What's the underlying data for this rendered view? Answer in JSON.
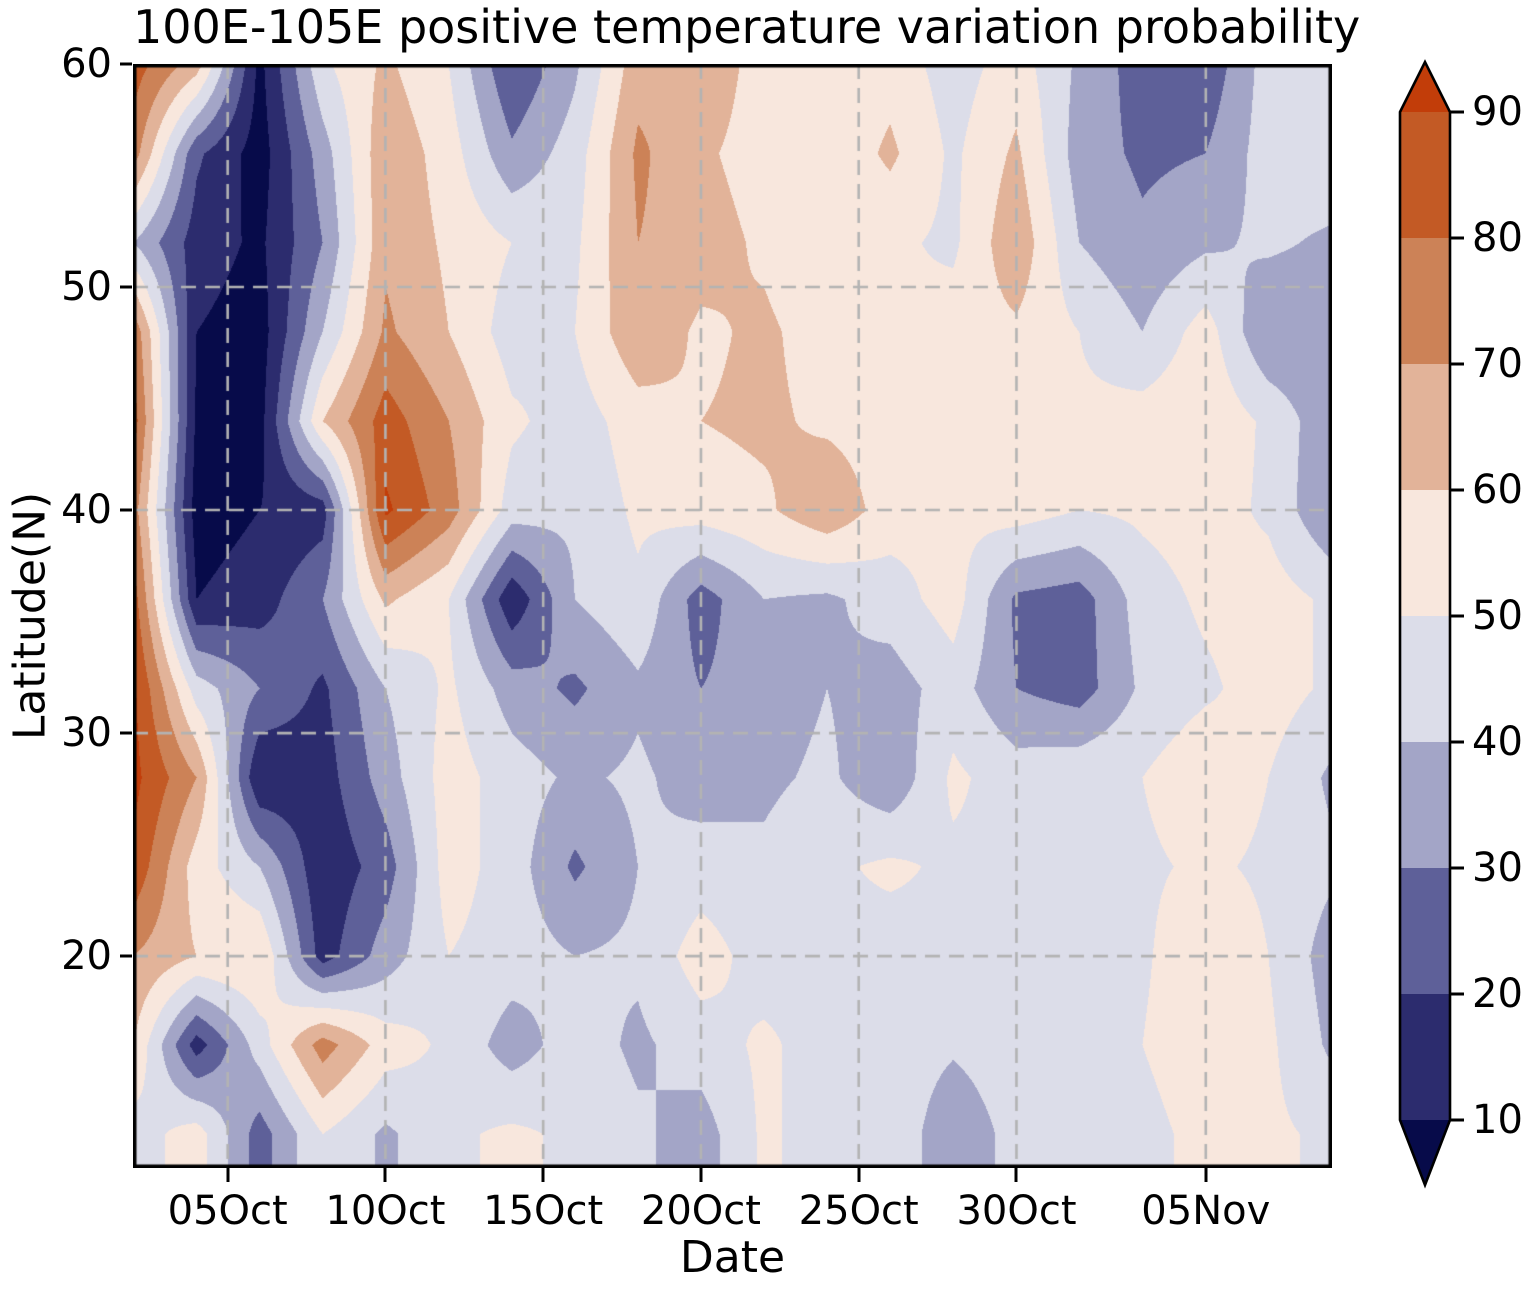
{
  "title": "100E-105E positive temperature variation probability",
  "xlabel": "Date",
  "ylabel": "Latitude(N)",
  "axes": {
    "x_tick_labels": [
      "05Oct",
      "10Oct",
      "15Oct",
      "20Oct",
      "25Oct",
      "30Oct",
      "05Nov"
    ],
    "y_tick_labels": [
      "60",
      "50",
      "40",
      "30",
      "20"
    ]
  },
  "colorbar": {
    "tick_labels": [
      "90",
      "80",
      "70",
      "60",
      "50",
      "40",
      "30",
      "20",
      "10"
    ],
    "extend": "both"
  },
  "chart_data": {
    "type": "contour-filled",
    "title": "100E-105E positive temperature variation probability",
    "xlabel": "Date",
    "ylabel": "Latitude(N)",
    "grid": "dashed-gray",
    "legend_position": "right-colorbar",
    "x_grid_dates": [
      "02Oct",
      "04Oct",
      "06Oct",
      "08Oct",
      "10Oct",
      "12Oct",
      "14Oct",
      "16Oct",
      "18Oct",
      "20Oct",
      "22Oct",
      "24Oct",
      "26Oct",
      "28Oct",
      "30Oct",
      "01Nov",
      "03Nov",
      "05Nov",
      "07Nov",
      "09Nov"
    ],
    "x_total_days": 38,
    "x_tick_days": [
      3,
      8,
      13,
      18,
      23,
      28,
      34
    ],
    "x_tick_labels": [
      "05Oct",
      "10Oct",
      "15Oct",
      "20Oct",
      "25Oct",
      "30Oct",
      "05Nov"
    ],
    "y_lats": [
      60,
      56,
      52,
      48,
      44,
      40,
      36,
      32,
      28,
      24,
      20,
      16,
      12
    ],
    "y_range": [
      10.5,
      60
    ],
    "y_tick_lats": [
      60,
      50,
      40,
      30,
      20
    ],
    "levels": [
      10,
      20,
      30,
      40,
      50,
      60,
      70,
      80,
      90
    ],
    "colorbar_tick_labels": [
      "90",
      "80",
      "70",
      "60",
      "50",
      "40",
      "30",
      "20",
      "10"
    ],
    "colors": [
      "#070b4a",
      "#2c2c6e",
      "#5e6099",
      "#a3a5c7",
      "#dcdde9",
      "#f8e7dd",
      "#e2b399",
      "#cc8257",
      "#c35a25",
      "#c23d09"
    ],
    "grid_color": "#b3b3b3",
    "values_probability_percent": [
      [
        85,
        65,
        7,
        48,
        62,
        50,
        20,
        38,
        66,
        68,
        55,
        52,
        56,
        45,
        55,
        38,
        25,
        22,
        45,
        50
      ],
      [
        75,
        22,
        5,
        35,
        68,
        55,
        32,
        45,
        72,
        62,
        55,
        52,
        62,
        48,
        62,
        35,
        28,
        30,
        45,
        48
      ],
      [
        40,
        15,
        8,
        30,
        68,
        58,
        50,
        48,
        70,
        65,
        58,
        50,
        52,
        48,
        68,
        40,
        32,
        38,
        42,
        38
      ],
      [
        78,
        10,
        5,
        40,
        72,
        60,
        45,
        50,
        68,
        58,
        62,
        55,
        50,
        55,
        58,
        50,
        40,
        55,
        30,
        32
      ],
      [
        85,
        8,
        6,
        60,
        85,
        70,
        52,
        45,
        55,
        60,
        62,
        58,
        55,
        55,
        58,
        52,
        55,
        58,
        48,
        32
      ],
      [
        75,
        5,
        10,
        15,
        92,
        75,
        45,
        42,
        52,
        55,
        58,
        68,
        55,
        52,
        55,
        50,
        52,
        55,
        48,
        30
      ],
      [
        85,
        10,
        15,
        30,
        62,
        50,
        12,
        40,
        48,
        25,
        40,
        38,
        45,
        55,
        28,
        25,
        45,
        52,
        55,
        48
      ],
      [
        92,
        45,
        30,
        18,
        40,
        52,
        35,
        28,
        38,
        30,
        35,
        40,
        35,
        45,
        30,
        25,
        42,
        48,
        55,
        48
      ],
      [
        93,
        70,
        10,
        15,
        35,
        55,
        45,
        38,
        42,
        35,
        38,
        42,
        32,
        52,
        45,
        48,
        50,
        58,
        50,
        38
      ],
      [
        88,
        55,
        40,
        12,
        25,
        55,
        45,
        28,
        40,
        45,
        42,
        48,
        52,
        48,
        48,
        45,
        48,
        52,
        48,
        42
      ],
      [
        70,
        60,
        60,
        15,
        35,
        50,
        45,
        40,
        42,
        55,
        45,
        48,
        45,
        48,
        45,
        42,
        48,
        60,
        50,
        35
      ],
      [
        60,
        15,
        45,
        75,
        55,
        48,
        35,
        45,
        38,
        45,
        52,
        45,
        48,
        42,
        48,
        45,
        50,
        60,
        52,
        38
      ],
      [
        45,
        55,
        25,
        50,
        38,
        48,
        52,
        48,
        42,
        35,
        52,
        45,
        50,
        30,
        45,
        42,
        45,
        55,
        52,
        48
      ]
    ]
  }
}
